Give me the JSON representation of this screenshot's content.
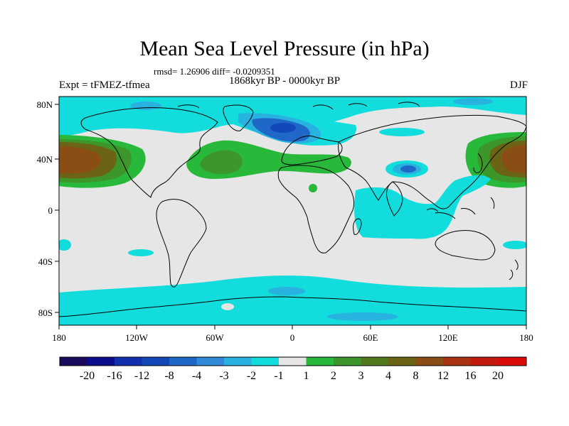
{
  "title": "Mean Sea Level Pressure (in hPa)",
  "stats": "rmsd= 1.26906 diff= -0.0209351",
  "period": "1868kyr BP - 0000kyr BP",
  "experiment": "Expt = tFMEZ-tfmea",
  "season": "DJF",
  "lat_ticks": [
    "80N",
    "40N",
    "0",
    "40S",
    "80S"
  ],
  "lon_ticks": [
    "180",
    "120W",
    "60W",
    "0",
    "60E",
    "120E",
    "180"
  ],
  "colorbar": {
    "labels": [
      "-20",
      "-16",
      "-12",
      "-8",
      "-4",
      "-3",
      "-2",
      "-1",
      "1",
      "2",
      "3",
      "4",
      "8",
      "12",
      "16",
      "20"
    ],
    "colors": [
      "#1a0a5e",
      "#0d0d8c",
      "#1030b0",
      "#1248b8",
      "#1f68c8",
      "#2f8ad8",
      "#27b2e0",
      "#12dcdc",
      "#e6e6e6",
      "#28b83a",
      "#3c962a",
      "#527a1c",
      "#6a6414",
      "#8a4e14",
      "#a83212",
      "#c41a0e",
      "#dd0a0a"
    ]
  },
  "colors": {
    "neutral": "#e6e6e6",
    "cyan": "#12dcdc",
    "blue_mid": "#27b2e0",
    "blue_dark": "#1f68c8",
    "blue_deep": "#1248b8",
    "green": "#28b83a",
    "green_dark": "#3c962a",
    "brown": "#6a6414",
    "brown_dark": "#8a4e14"
  }
}
